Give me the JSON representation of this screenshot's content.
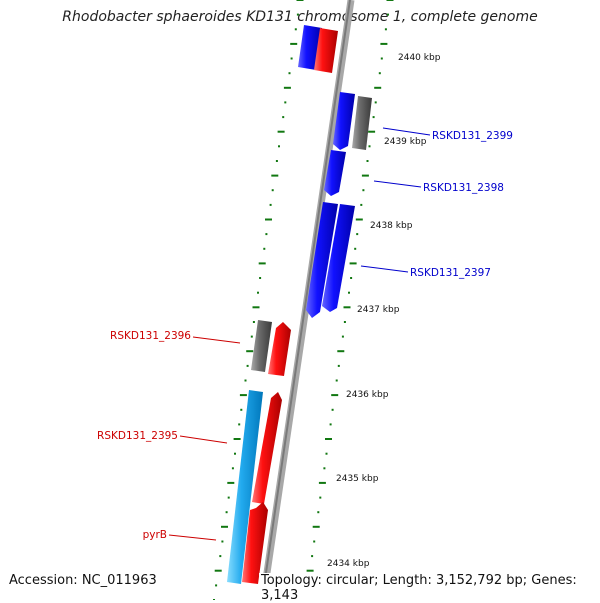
{
  "title": "Rhodobacter sphaeroides KD131 chromosome 1, complete genome",
  "accession": "Accession: NC_011963",
  "summary": "Topology: circular; Length: 3,152,792 bp; Genes: 3,143",
  "scale_ticks": [
    "2440 kbp",
    "2439 kbp",
    "2438 kbp",
    "2437 kbp",
    "2436 kbp",
    "2435 kbp",
    "2434 kbp"
  ],
  "gene_labels": [
    {
      "text": "RSKD131_2399",
      "color": "#0000cc"
    },
    {
      "text": "RSKD131_2398",
      "color": "#0000cc"
    },
    {
      "text": "RSKD131_2397",
      "color": "#0000cc"
    },
    {
      "text": "RSKD131_2396",
      "color": "#cc0000"
    },
    {
      "text": "RSKD131_2395",
      "color": "#cc0000"
    },
    {
      "text": "pyrB",
      "color": "#cc0000"
    }
  ],
  "colors": {
    "backbone": "#909090",
    "dots": "#117711",
    "blue_cds": "#0000ee",
    "red_cds": "#ee0000",
    "gray_feature": "#666666",
    "cyan_feature": "#22aaee"
  }
}
